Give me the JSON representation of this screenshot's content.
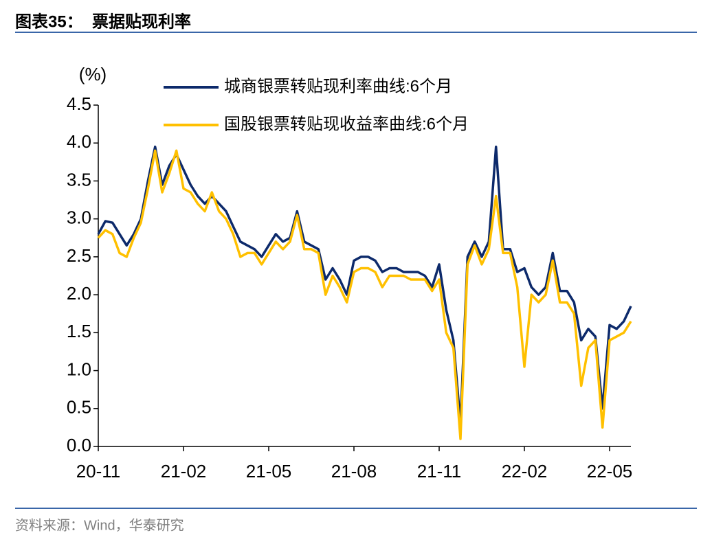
{
  "chart_data": {
    "type": "line",
    "title": "图表35：  票据贴现利率",
    "y_label": "(%)",
    "source": "资料来源：Wind，华泰研究",
    "categories": [
      "20-11",
      null,
      null,
      null,
      null,
      null,
      null,
      null,
      null,
      null,
      null,
      null,
      "21-02",
      null,
      null,
      null,
      null,
      null,
      null,
      null,
      null,
      null,
      null,
      null,
      "21-05",
      null,
      null,
      null,
      null,
      null,
      null,
      null,
      null,
      null,
      null,
      null,
      "21-08",
      null,
      null,
      null,
      null,
      null,
      null,
      null,
      null,
      null,
      null,
      null,
      "21-11",
      null,
      null,
      null,
      null,
      null,
      null,
      null,
      null,
      null,
      null,
      null,
      "22-02",
      null,
      null,
      null,
      null,
      null,
      null,
      null,
      null,
      null,
      null,
      null,
      "22-05",
      null,
      null,
      null
    ],
    "series": [
      {
        "name": "城商银票转贴现利率曲线:6个月",
        "color": "#0d2a6b",
        "values": [
          2.8,
          2.97,
          2.95,
          2.8,
          2.65,
          2.8,
          3.0,
          3.5,
          3.95,
          3.45,
          3.7,
          3.85,
          3.65,
          3.45,
          3.3,
          3.2,
          3.3,
          3.2,
          3.1,
          2.9,
          2.7,
          2.65,
          2.6,
          2.5,
          2.65,
          2.8,
          2.7,
          2.75,
          3.1,
          2.7,
          2.65,
          2.6,
          2.2,
          2.35,
          2.2,
          2.0,
          2.45,
          2.5,
          2.5,
          2.45,
          2.3,
          2.35,
          2.35,
          2.3,
          2.3,
          2.3,
          2.25,
          2.1,
          2.4,
          1.8,
          1.4,
          0.3,
          2.5,
          2.7,
          2.5,
          2.7,
          3.95,
          2.6,
          2.6,
          2.3,
          2.35,
          2.1,
          2.0,
          2.1,
          2.55,
          2.05,
          2.05,
          1.9,
          1.4,
          1.55,
          1.45,
          0.5,
          1.6,
          1.55,
          1.65,
          1.85
        ]
      },
      {
        "name": "国股银票转贴现收益率曲线:6个月",
        "color": "#ffc000",
        "values": [
          2.75,
          2.85,
          2.8,
          2.55,
          2.5,
          2.75,
          2.95,
          3.4,
          3.9,
          3.35,
          3.6,
          3.9,
          3.4,
          3.35,
          3.2,
          3.1,
          3.35,
          3.1,
          3.0,
          2.8,
          2.5,
          2.55,
          2.55,
          2.4,
          2.55,
          2.7,
          2.6,
          2.7,
          3.05,
          2.6,
          2.6,
          2.55,
          2.0,
          2.25,
          2.1,
          1.9,
          2.3,
          2.35,
          2.35,
          2.3,
          2.1,
          2.25,
          2.25,
          2.25,
          2.2,
          2.2,
          2.2,
          2.05,
          2.2,
          1.5,
          1.3,
          0.1,
          2.4,
          2.65,
          2.4,
          2.6,
          3.3,
          2.55,
          2.55,
          2.1,
          1.05,
          2.0,
          1.9,
          2.0,
          2.45,
          1.9,
          1.9,
          1.75,
          0.8,
          1.3,
          1.4,
          0.25,
          1.4,
          1.45,
          1.5,
          1.65
        ]
      }
    ],
    "ylim": [
      0,
      4.5
    ],
    "yticks": [
      {
        "value": 0,
        "label": "0.0"
      },
      0.5,
      {
        "value": 1,
        "label": "1.0"
      },
      1.5,
      {
        "value": 2,
        "label": "2.0"
      },
      2.5,
      {
        "value": 3,
        "label": "3.0"
      },
      3.5,
      {
        "value": 4,
        "label": "4.0"
      },
      4.5
    ],
    "legend": "upper left"
  }
}
